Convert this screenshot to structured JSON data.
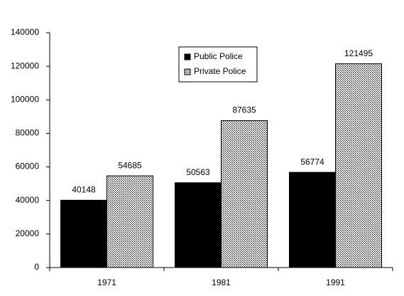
{
  "chart_data": {
    "type": "bar",
    "categories": [
      "1971",
      "1981",
      "1991"
    ],
    "series": [
      {
        "name": "Public Police",
        "color": "#000000",
        "values": [
          40148,
          50563,
          56774
        ]
      },
      {
        "name": "Private Police",
        "color": "#999999",
        "values": [
          54685,
          87635,
          121495
        ]
      }
    ],
    "ylim": [
      0,
      140000
    ],
    "yticks": [
      0,
      20000,
      40000,
      60000,
      80000,
      100000,
      120000,
      140000
    ],
    "legend": "top"
  }
}
